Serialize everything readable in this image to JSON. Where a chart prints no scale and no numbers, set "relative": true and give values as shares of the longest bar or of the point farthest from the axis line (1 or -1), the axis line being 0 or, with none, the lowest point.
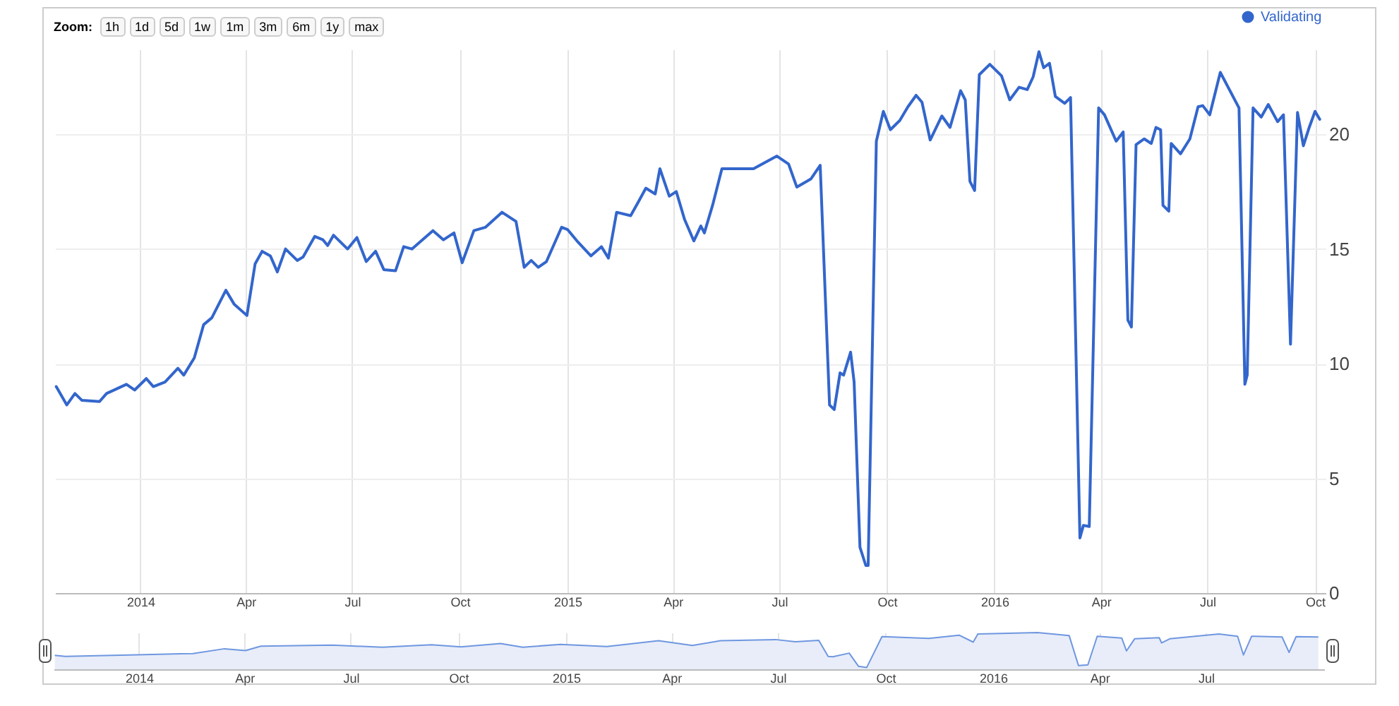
{
  "chart_data": [
    {
      "type": "line",
      "annotations": [
        "Zoom:",
        "1h",
        "1d",
        "5d",
        "1w",
        "1m",
        "3m",
        "6m",
        "1y",
        "max"
      ],
      "x": [
        "2013-10-21",
        "2013-10-30",
        "2013-11-06",
        "2013-11-12",
        "2013-11-27",
        "2013-12-03",
        "2013-12-20",
        "2013-12-27",
        "2014-01-06",
        "2014-01-12",
        "2014-01-22",
        "2014-02-02",
        "2014-02-07",
        "2014-02-16",
        "2014-02-24",
        "2014-03-03",
        "2014-03-15",
        "2014-03-22",
        "2014-04-02",
        "2014-04-09",
        "2014-04-15",
        "2014-04-22",
        "2014-04-28",
        "2014-05-05",
        "2014-05-15",
        "2014-05-20",
        "2014-05-30",
        "2014-06-06",
        "2014-06-10",
        "2014-06-15",
        "2014-06-27",
        "2014-07-05",
        "2014-07-13",
        "2014-07-21",
        "2014-07-28",
        "2014-08-07",
        "2014-08-14",
        "2014-08-21",
        "2014-09-08",
        "2014-09-17",
        "2014-09-26",
        "2014-10-03",
        "2014-10-13",
        "2014-10-23",
        "2014-11-06",
        "2014-11-18",
        "2014-11-25",
        "2014-12-01",
        "2014-12-07",
        "2014-12-14",
        "2014-12-27",
        "2015-01-01",
        "2015-01-10",
        "2015-01-21",
        "2015-01-30",
        "2015-02-05",
        "2015-02-12",
        "2015-02-24",
        "2015-03-02",
        "2015-03-09",
        "2015-03-17",
        "2015-03-21",
        "2015-03-29",
        "2015-04-04",
        "2015-04-11",
        "2015-04-19",
        "2015-04-25",
        "2015-04-28",
        "2015-05-05",
        "2015-05-13",
        "2015-05-23",
        "2015-06-09",
        "2015-06-29",
        "2015-07-09",
        "2015-07-16",
        "2015-07-28",
        "2015-08-05",
        "2015-08-13",
        "2015-08-17",
        "2015-08-22",
        "2015-08-25",
        "2015-08-31",
        "2015-09-03",
        "2015-09-08",
        "2015-09-13",
        "2015-09-15",
        "2015-09-22",
        "2015-09-28",
        "2015-10-04",
        "2015-10-12",
        "2015-10-19",
        "2015-10-26",
        "2015-10-31",
        "2015-11-07",
        "2015-11-17",
        "2015-11-24",
        "2015-12-03",
        "2015-12-07",
        "2015-12-11",
        "2015-12-15",
        "2015-12-19",
        "2015-12-28",
        "2016-01-07",
        "2016-01-14",
        "2016-01-22",
        "2016-01-29",
        "2016-02-03",
        "2016-02-08",
        "2016-02-12",
        "2016-02-17",
        "2016-02-22",
        "2016-03-01",
        "2016-03-06",
        "2016-03-14",
        "2016-03-17",
        "2016-03-22",
        "2016-03-30",
        "2016-04-04",
        "2016-04-14",
        "2016-04-20",
        "2016-04-24",
        "2016-04-27",
        "2016-05-01",
        "2016-05-08",
        "2016-05-14",
        "2016-05-18",
        "2016-05-22",
        "2016-05-24",
        "2016-05-29",
        "2016-05-31",
        "2016-06-08",
        "2016-06-16",
        "2016-06-23",
        "2016-06-27",
        "2016-07-03",
        "2016-07-12",
        "2016-07-28",
        "2016-08-02",
        "2016-08-04",
        "2016-08-09",
        "2016-08-16",
        "2016-08-22",
        "2016-08-30",
        "2016-09-04",
        "2016-09-10",
        "2016-09-16",
        "2016-09-21",
        "2016-09-26",
        "2016-10-01",
        "2016-10-05"
      ],
      "series": [
        {
          "name": "Validating",
          "color": "#3366cc",
          "values": [
            9.0,
            8.2,
            8.7,
            8.4,
            8.35,
            8.7,
            9.1,
            8.85,
            9.35,
            9.0,
            9.2,
            9.8,
            9.5,
            10.25,
            11.7,
            12.0,
            13.2,
            12.6,
            12.1,
            14.35,
            14.9,
            14.7,
            14.0,
            15.0,
            14.5,
            14.65,
            15.55,
            15.4,
            15.15,
            15.6,
            15.0,
            15.5,
            14.45,
            14.9,
            14.1,
            14.05,
            15.1,
            15.0,
            15.8,
            15.4,
            15.7,
            14.4,
            15.8,
            15.95,
            16.6,
            16.2,
            14.2,
            14.5,
            14.2,
            14.45,
            15.95,
            15.85,
            15.3,
            14.7,
            15.1,
            14.6,
            16.6,
            16.45,
            17.0,
            17.65,
            17.4,
            18.5,
            17.3,
            17.5,
            16.3,
            15.35,
            16.0,
            15.7,
            16.9,
            18.5,
            18.5,
            18.5,
            19.05,
            18.7,
            17.7,
            18.05,
            18.65,
            8.2,
            8.0,
            9.6,
            9.5,
            10.5,
            9.2,
            2.0,
            1.2,
            1.2,
            19.7,
            21.0,
            20.2,
            20.6,
            21.2,
            21.7,
            21.4,
            19.75,
            20.8,
            20.3,
            21.9,
            21.5,
            17.95,
            17.55,
            22.6,
            23.05,
            22.55,
            21.5,
            22.05,
            21.95,
            22.5,
            23.6,
            22.9,
            23.1,
            21.65,
            21.35,
            21.6,
            2.4,
            2.95,
            2.9,
            21.15,
            20.85,
            19.7,
            20.1,
            11.9,
            11.6,
            19.55,
            19.8,
            19.6,
            20.3,
            20.2,
            16.9,
            16.65,
            19.6,
            19.15,
            19.8,
            21.2,
            21.25,
            20.85,
            22.7,
            21.15,
            9.1,
            9.5,
            21.15,
            20.75,
            21.3,
            20.55,
            20.85,
            10.85,
            20.95,
            19.5,
            20.3,
            21.0,
            20.65
          ]
        }
      ],
      "xlim": [
        "2013-10-20",
        "2016-10-10"
      ],
      "xticks": [
        {
          "value": "2014-01-01",
          "label": "2014"
        },
        {
          "value": "2014-04-01",
          "label": "Apr"
        },
        {
          "value": "2014-07-01",
          "label": "Jul"
        },
        {
          "value": "2014-10-01",
          "label": "Oct"
        },
        {
          "value": "2015-01-01",
          "label": "2015"
        },
        {
          "value": "2015-04-01",
          "label": "Apr"
        },
        {
          "value": "2015-07-01",
          "label": "Jul"
        },
        {
          "value": "2015-10-01",
          "label": "Oct"
        },
        {
          "value": "2016-01-01",
          "label": "2016"
        },
        {
          "value": "2016-04-01",
          "label": "Apr"
        },
        {
          "value": "2016-07-01",
          "label": "Jul"
        },
        {
          "value": "2016-10-01",
          "label": "Oct"
        }
      ],
      "ylim": [
        0,
        23.7
      ],
      "yticks": [
        0,
        5,
        10,
        15,
        20
      ],
      "grid": true,
      "legend": "top right"
    },
    {
      "type": "area",
      "grid": "x",
      "relative": true,
      "x": [
        "2013-10-21",
        "2013-10-30",
        "2014-01-06",
        "2014-02-16",
        "2014-03-15",
        "2014-04-02",
        "2014-04-15",
        "2014-06-15",
        "2014-07-28",
        "2014-09-08",
        "2014-10-03",
        "2014-11-06",
        "2014-11-25",
        "2014-12-27",
        "2015-02-05",
        "2015-03-21",
        "2015-04-19",
        "2015-05-13",
        "2015-06-29",
        "2015-07-16",
        "2015-08-05",
        "2015-08-13",
        "2015-08-17",
        "2015-08-31",
        "2015-09-08",
        "2015-09-15",
        "2015-09-28",
        "2015-11-07",
        "2015-12-03",
        "2015-12-15",
        "2015-12-19",
        "2016-02-08",
        "2016-03-06",
        "2016-03-14",
        "2016-03-22",
        "2016-03-30",
        "2016-04-20",
        "2016-04-24",
        "2016-05-01",
        "2016-05-22",
        "2016-05-24",
        "2016-05-31",
        "2016-07-12",
        "2016-07-28",
        "2016-08-02",
        "2016-08-09",
        "2016-09-04",
        "2016-09-10",
        "2016-09-16",
        "2016-10-05"
      ],
      "series": [
        {
          "color": "#6f97e0",
          "values": [
            0.38,
            0.35,
            0.4,
            0.43,
            0.56,
            0.51,
            0.63,
            0.66,
            0.6,
            0.67,
            0.61,
            0.7,
            0.6,
            0.68,
            0.62,
            0.78,
            0.65,
            0.78,
            0.81,
            0.75,
            0.79,
            0.35,
            0.34,
            0.44,
            0.08,
            0.05,
            0.89,
            0.84,
            0.93,
            0.74,
            0.96,
            1,
            0.92,
            0.1,
            0.12,
            0.9,
            0.85,
            0.5,
            0.83,
            0.86,
            0.72,
            0.83,
            0.96,
            0.9,
            0.39,
            0.9,
            0.88,
            0.46,
            0.89,
            0.88
          ]
        }
      ],
      "xlim": [
        "2013-10-20",
        "2016-10-10"
      ],
      "xticks": [
        {
          "value": "2014-01-01",
          "label": "2014"
        },
        {
          "value": "2014-04-01",
          "label": "Apr"
        },
        {
          "value": "2014-07-01",
          "label": "Jul"
        },
        {
          "value": "2014-10-01",
          "label": "Oct"
        },
        {
          "value": "2015-01-01",
          "label": "2015"
        },
        {
          "value": "2015-04-01",
          "label": "Apr"
        },
        {
          "value": "2015-07-01",
          "label": "Jul"
        },
        {
          "value": "2015-10-01",
          "label": "Oct"
        },
        {
          "value": "2016-01-01",
          "label": "2016"
        },
        {
          "value": "2016-04-01",
          "label": "Apr"
        },
        {
          "value": "2016-07-01",
          "label": "Jul"
        }
      ]
    }
  ]
}
